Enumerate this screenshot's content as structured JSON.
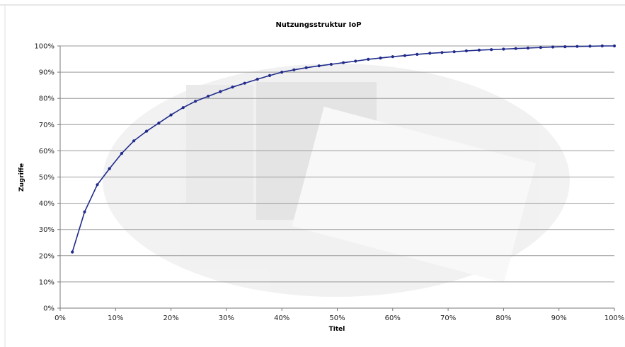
{
  "chart_data": {
    "type": "line",
    "title": "Nutzungsstruktur IoP",
    "xlabel": "Titel",
    "ylabel": "Zugriffe",
    "xlim": [
      0,
      100
    ],
    "ylim": [
      0,
      100
    ],
    "x_ticks": [
      "0%",
      "10%",
      "20%",
      "30%",
      "40%",
      "50%",
      "60%",
      "70%",
      "80%",
      "90%",
      "100%"
    ],
    "y_ticks": [
      "0%",
      "10%",
      "20%",
      "30%",
      "40%",
      "50%",
      "60%",
      "70%",
      "80%",
      "90%",
      "100%"
    ],
    "grid": true,
    "legend": "none",
    "series_color": "#1f2a8a",
    "series": [
      {
        "x": [
          2.2,
          4.4,
          6.7,
          8.9,
          11.1,
          13.3,
          15.6,
          17.8,
          20.0,
          22.2,
          24.4,
          26.7,
          28.9,
          31.1,
          33.3,
          35.6,
          37.8,
          40.0,
          42.2,
          44.4,
          46.7,
          48.9,
          51.1,
          53.3,
          55.6,
          57.8,
          60.0,
          62.2,
          64.4,
          66.7,
          68.9,
          71.1,
          73.3,
          75.6,
          77.8,
          80.0,
          82.2,
          84.4,
          86.7,
          88.9,
          91.1,
          93.3,
          95.6,
          97.8,
          100.0
        ],
        "y": [
          21.4,
          36.7,
          47.1,
          53.2,
          59.0,
          63.8,
          67.5,
          70.6,
          73.7,
          76.5,
          78.9,
          80.8,
          82.6,
          84.3,
          85.8,
          87.3,
          88.7,
          90.0,
          90.9,
          91.7,
          92.4,
          93.0,
          93.6,
          94.2,
          94.9,
          95.4,
          95.9,
          96.3,
          96.8,
          97.2,
          97.5,
          97.8,
          98.1,
          98.4,
          98.6,
          98.8,
          99.0,
          99.2,
          99.4,
          99.6,
          99.7,
          99.8,
          99.9,
          100.0,
          100.0
        ]
      }
    ]
  }
}
